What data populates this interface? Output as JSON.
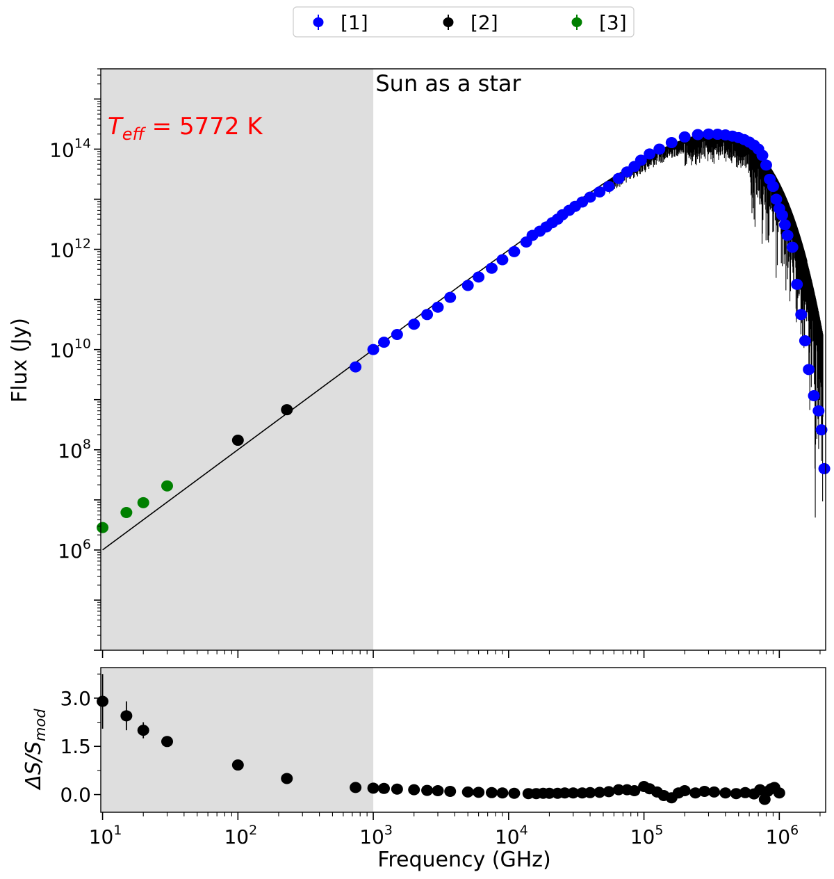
{
  "chart_data": [
    {
      "type": "scatter",
      "panel": "main",
      "title": "Sun as a star",
      "annotation": {
        "text": "T_eff = 5772 K",
        "symbol": "T",
        "subscript": "eff",
        "rest": " = 5772 K",
        "color": "#ff0000"
      },
      "xlabel": "",
      "ylabel": "Flux (Jy)",
      "xscale": "log",
      "yscale": "log",
      "xlim": [
        9.7,
        2200000
      ],
      "ylim": [
        10000,
        4000000000000000
      ],
      "yticks": [
        {
          "value": 1000000,
          "base": "10",
          "exp": "6"
        },
        {
          "value": 100000000,
          "base": "10",
          "exp": "8"
        },
        {
          "value": 10000000000,
          "base": "10",
          "exp": "10"
        },
        {
          "value": 1000000000000,
          "base": "10",
          "exp": "12"
        },
        {
          "value": 100000000000000,
          "base": "10",
          "exp": "14"
        }
      ],
      "shaded_region": {
        "x": [
          9.7,
          1000
        ],
        "color": "#dedede"
      },
      "grid": false,
      "legend": {
        "placement": "top-center",
        "entries": [
          {
            "label": "[1]",
            "color": "#0000ff"
          },
          {
            "label": "[2]",
            "color": "#000000"
          },
          {
            "label": "[3]",
            "color": "#008000"
          }
        ]
      },
      "model_line": {
        "name": "model",
        "color": "#000000",
        "temperature_K": 5772
      },
      "series": [
        {
          "name": "[1]",
          "color": "#0000ff",
          "points": [
            [
              740,
              4500000000
            ],
            [
              1000,
              10000000000
            ],
            [
              1200,
              14000000000
            ],
            [
              1500,
              20000000000
            ],
            [
              2000,
              32000000000
            ],
            [
              2500,
              50000000000
            ],
            [
              3000,
              70000000000
            ],
            [
              3700,
              110000000000
            ],
            [
              5000,
              190000000000
            ],
            [
              6000,
              280000000000
            ],
            [
              7500,
              420000000000
            ],
            [
              9000,
              620000000000
            ],
            [
              11000,
              900000000000
            ],
            [
              13500,
              1400000000000
            ],
            [
              15000,
              1900000000000
            ],
            [
              17000,
              2300000000000
            ],
            [
              19000,
              2800000000000
            ],
            [
              21000,
              3400000000000
            ],
            [
              23000,
              4000000000000
            ],
            [
              25000,
              4900000000000
            ],
            [
              28000,
              6000000000000
            ],
            [
              31000,
              7200000000000
            ],
            [
              35000,
              8800000000000
            ],
            [
              40000,
              11000000000000
            ],
            [
              47000,
              14000000000000
            ],
            [
              55000,
              18000000000000
            ],
            [
              65000,
              26000000000000
            ],
            [
              75000,
              35000000000000
            ],
            [
              85000,
              45000000000000
            ],
            [
              95000,
              60000000000000
            ],
            [
              110000,
              80000000000000
            ],
            [
              130000,
              100000000000000
            ],
            [
              160000,
              135000000000000
            ],
            [
              200000,
              175000000000000
            ],
            [
              250000,
              195000000000000
            ],
            [
              300000,
              200000000000000
            ],
            [
              350000,
              198000000000000
            ],
            [
              400000,
              192000000000000
            ],
            [
              450000,
              182000000000000
            ],
            [
              500000,
              170000000000000
            ],
            [
              550000,
              155000000000000
            ],
            [
              600000,
              138000000000000
            ],
            [
              650000,
              120000000000000
            ],
            [
              700000,
              100000000000000
            ],
            [
              750000,
              75000000000000
            ],
            [
              800000,
              48000000000000
            ],
            [
              850000,
              25000000000000
            ],
            [
              900000,
              18000000000000
            ],
            [
              950000,
              10000000000000
            ],
            [
              1000000,
              6500000000000
            ],
            [
              1050000,
              4800000000000
            ],
            [
              1100000,
              3100000000000
            ],
            [
              1150000,
              1900000000000
            ],
            [
              1250000,
              1100000000000
            ],
            [
              1350000,
              200000000000
            ],
            [
              1450000,
              50000000000
            ],
            [
              1550000,
              15000000000
            ],
            [
              1650000,
              4000000000
            ],
            [
              1800000,
              1200000000
            ],
            [
              1950000,
              600000000
            ],
            [
              2050000,
              250000000
            ],
            [
              2150000,
              42000000
            ]
          ]
        },
        {
          "name": "[2]",
          "color": "#000000",
          "points": [
            [
              100,
              155000000
            ],
            [
              230,
              630000000
            ]
          ]
        },
        {
          "name": "[3]",
          "color": "#008000",
          "points": [
            [
              10,
              2800000
            ],
            [
              15,
              5600000
            ],
            [
              20,
              8800000
            ],
            [
              30,
              19000000
            ]
          ]
        }
      ]
    },
    {
      "type": "scatter",
      "panel": "residual",
      "xlabel": "Frequency (GHz)",
      "ylabel": "ΔS/S_mod",
      "ylabel_parts": {
        "main": "ΔS/S",
        "subscript": "mod"
      },
      "xscale": "log",
      "xlim": [
        9.7,
        2200000
      ],
      "ylim": [
        -0.55,
        3.95
      ],
      "yticks": [
        {
          "value": 0,
          "label": "0.0"
        },
        {
          "value": 1.5,
          "label": "1.5"
        },
        {
          "value": 3,
          "label": "3.0"
        }
      ],
      "xticks": [
        {
          "value": 10,
          "base": "10",
          "exp": "1"
        },
        {
          "value": 100,
          "base": "10",
          "exp": "2"
        },
        {
          "value": 1000,
          "base": "10",
          "exp": "3"
        },
        {
          "value": 10000,
          "base": "10",
          "exp": "4"
        },
        {
          "value": 100000,
          "base": "10",
          "exp": "5"
        },
        {
          "value": 1000000,
          "base": "10",
          "exp": "6"
        }
      ],
      "shaded_region": {
        "x": [
          9.7,
          1000
        ],
        "color": "#dedede"
      },
      "grid": false,
      "series": [
        {
          "name": "[2]",
          "color": "#000000",
          "points": [
            {
              "x": 10,
              "y": 2.9,
              "err": 0.85
            },
            {
              "x": 15,
              "y": 2.45,
              "err": 0.45
            },
            {
              "x": 20,
              "y": 2.0,
              "err": 0.25
            },
            {
              "x": 30,
              "y": 1.65
            },
            {
              "x": 100,
              "y": 0.92
            },
            {
              "x": 230,
              "y": 0.5
            },
            {
              "x": 740,
              "y": 0.22
            },
            {
              "x": 1000,
              "y": 0.2
            },
            {
              "x": 1200,
              "y": 0.19
            },
            {
              "x": 1500,
              "y": 0.17
            },
            {
              "x": 2000,
              "y": 0.15
            },
            {
              "x": 2500,
              "y": 0.13
            },
            {
              "x": 3000,
              "y": 0.12
            },
            {
              "x": 3700,
              "y": 0.1
            },
            {
              "x": 5000,
              "y": 0.08
            },
            {
              "x": 6000,
              "y": 0.07
            },
            {
              "x": 7500,
              "y": 0.06
            },
            {
              "x": 9000,
              "y": 0.05
            },
            {
              "x": 11000,
              "y": 0.04
            },
            {
              "x": 14000,
              "y": 0.03
            },
            {
              "x": 16000,
              "y": 0.03
            },
            {
              "x": 18000,
              "y": 0.04
            },
            {
              "x": 20000,
              "y": 0.04
            },
            {
              "x": 23000,
              "y": 0.04
            },
            {
              "x": 26000,
              "y": 0.05
            },
            {
              "x": 30000,
              "y": 0.05
            },
            {
              "x": 35000,
              "y": 0.05
            },
            {
              "x": 40000,
              "y": 0.06
            },
            {
              "x": 47000,
              "y": 0.07
            },
            {
              "x": 55000,
              "y": 0.09
            },
            {
              "x": 65000,
              "y": 0.15
            },
            {
              "x": 75000,
              "y": 0.15
            },
            {
              "x": 85000,
              "y": 0.12
            },
            {
              "x": 100000,
              "y": 0.25
            },
            {
              "x": 110000,
              "y": 0.18
            },
            {
              "x": 125000,
              "y": 0.08
            },
            {
              "x": 140000,
              "y": -0.03
            },
            {
              "x": 160000,
              "y": -0.1
            },
            {
              "x": 180000,
              "y": 0.05
            },
            {
              "x": 200000,
              "y": 0.12
            },
            {
              "x": 240000,
              "y": 0.05
            },
            {
              "x": 280000,
              "y": 0.1
            },
            {
              "x": 330000,
              "y": 0.08
            },
            {
              "x": 400000,
              "y": 0.05
            },
            {
              "x": 480000,
              "y": 0.03
            },
            {
              "x": 560000,
              "y": 0.06
            },
            {
              "x": 650000,
              "y": 0.02
            },
            {
              "x": 720000,
              "y": 0.15
            },
            {
              "x": 780000,
              "y": -0.15
            },
            {
              "x": 820000,
              "y": 0.1
            },
            {
              "x": 870000,
              "y": 0.18
            },
            {
              "x": 920000,
              "y": 0.22
            },
            {
              "x": 1000000,
              "y": 0.05
            }
          ]
        }
      ]
    }
  ]
}
